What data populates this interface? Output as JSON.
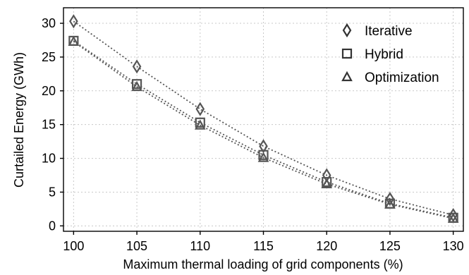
{
  "chart_data": {
    "type": "line",
    "xlabel": "Maximum thermal loading of grid components (%)",
    "ylabel": "Curtailed Energy (GWh)",
    "x": [
      100,
      105,
      110,
      115,
      120,
      125,
      130
    ],
    "xlim": [
      99.2,
      130.8
    ],
    "ylim": [
      -0.8,
      32.3
    ],
    "xticks": [
      100,
      105,
      110,
      115,
      120,
      125,
      130
    ],
    "yticks": [
      0,
      5,
      10,
      15,
      20,
      25,
      30
    ],
    "grid": true,
    "legend_position": "top-right",
    "series": [
      {
        "name": "Iterative",
        "marker": "diamond",
        "color": "#555555",
        "values": [
          30.3,
          23.6,
          17.3,
          11.8,
          7.5,
          4.0,
          1.6
        ]
      },
      {
        "name": "Hybrid",
        "marker": "square",
        "color": "#555555",
        "values": [
          27.4,
          21.0,
          15.3,
          10.5,
          6.5,
          3.3,
          1.2
        ]
      },
      {
        "name": "Optimization",
        "marker": "triangle",
        "color": "#555555",
        "values": [
          27.3,
          20.6,
          14.9,
          10.1,
          6.2,
          3.2,
          1.1
        ]
      }
    ]
  }
}
